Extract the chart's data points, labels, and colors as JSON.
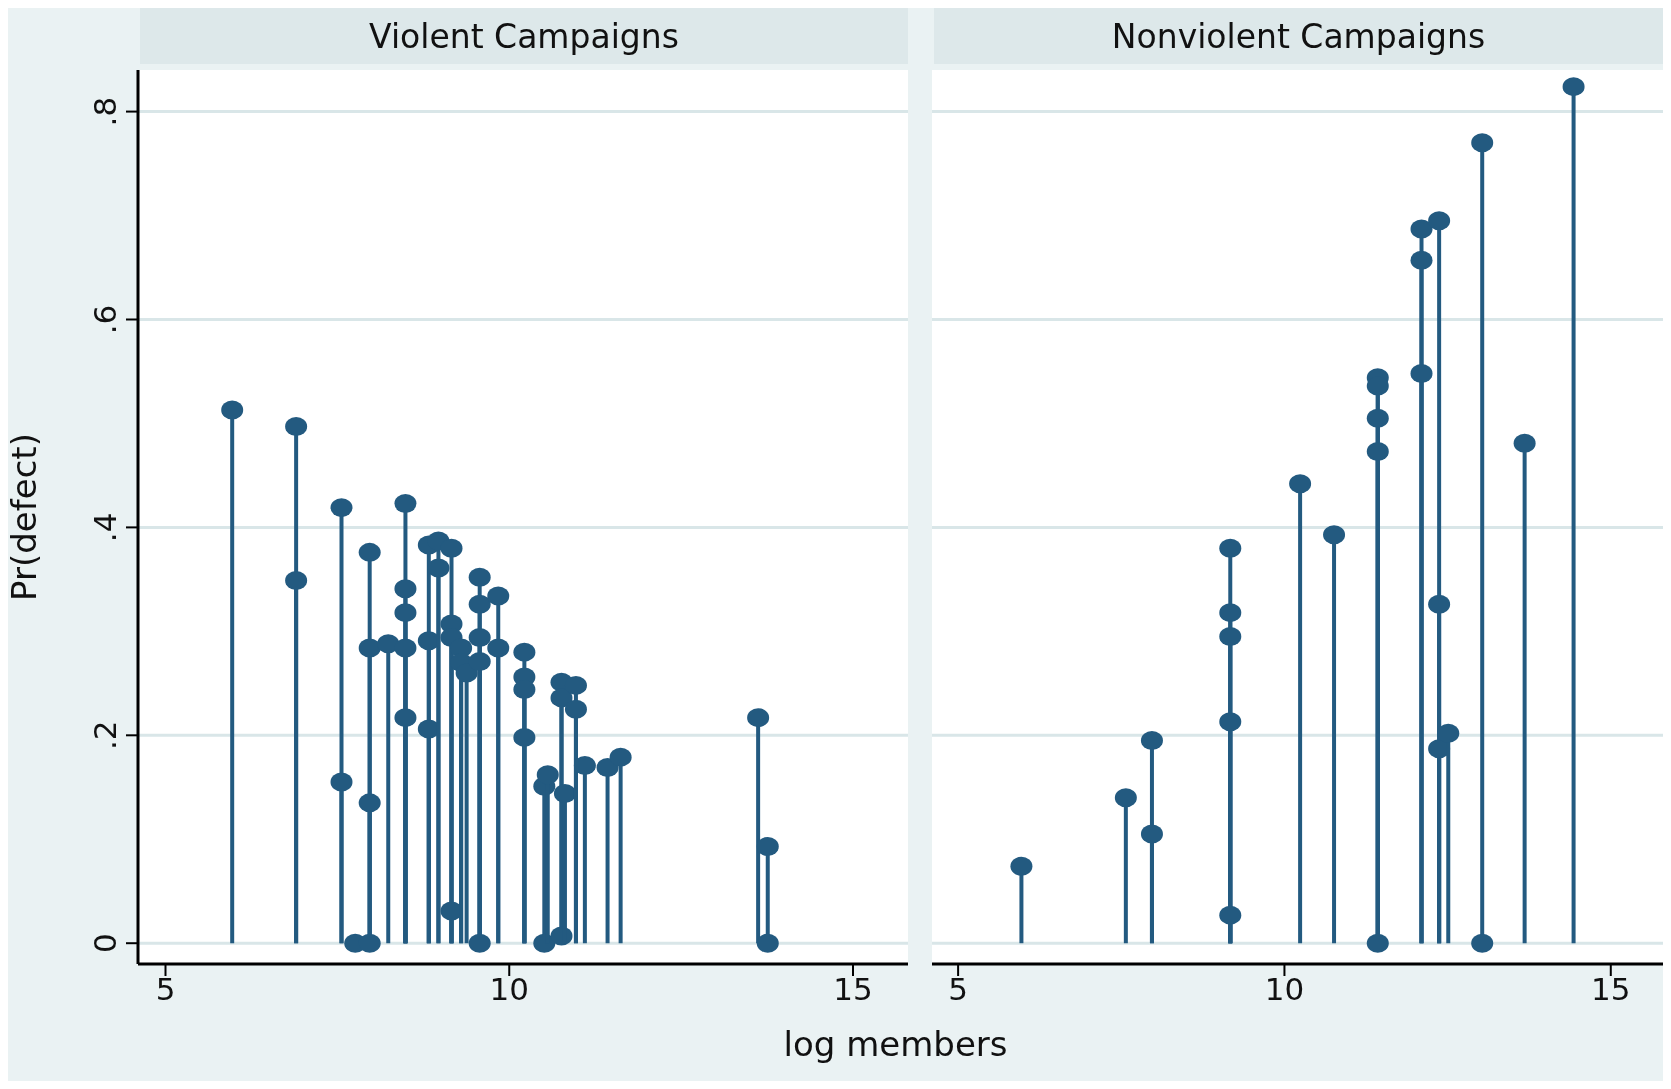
{
  "chart_data": [
    {
      "type": "lollipop",
      "title": "Violent Campaigns",
      "ylabel": "Pr(defect)",
      "color": "#235a80",
      "marker": "circle",
      "grid": "y",
      "x": [
        5.97,
        6.9,
        6.9,
        7.56,
        7.56,
        7.76,
        7.97,
        7.97,
        7.97,
        7.97,
        8.24,
        8.49,
        8.49,
        8.49,
        8.49,
        8.49,
        8.83,
        8.83,
        8.83,
        8.97,
        8.97,
        9.16,
        9.16,
        9.16,
        9.16,
        9.3,
        9.3,
        9.38,
        9.57,
        9.57,
        9.57,
        9.57,
        9.57,
        9.84,
        9.84,
        10.22,
        10.22,
        10.22,
        10.22,
        10.51,
        10.51,
        10.56,
        10.76,
        10.76,
        10.76,
        10.81,
        10.97,
        10.97,
        11.1,
        11.43,
        11.62,
        13.62,
        13.76,
        13.76
      ],
      "values": [
        0.513,
        0.497,
        0.349,
        0.419,
        0.155,
        0,
        0.376,
        0.284,
        0.135,
        0,
        0.288,
        0.423,
        0.341,
        0.318,
        0.284,
        0.217,
        0.383,
        0.291,
        0.206,
        0.387,
        0.361,
        0.38,
        0.307,
        0.294,
        0.031,
        0.284,
        0.27,
        0.26,
        0.352,
        0.326,
        0.294,
        0.271,
        0,
        0.334,
        0.284,
        0.28,
        0.256,
        0.244,
        0.198,
        0.151,
        0,
        0.162,
        0.251,
        0.236,
        0.007,
        0.144,
        0.248,
        0.225,
        0.171,
        0.169,
        0.179,
        0.217,
        0.093,
        0
      ],
      "xlim": [
        4.6,
        15.8
      ],
      "ylim": [
        -0.02,
        0.84
      ],
      "xticks": [
        5,
        10,
        15
      ],
      "yticks": [
        0,
        {
          "value": 0.2,
          "label": ".2"
        },
        {
          "value": 0.4,
          "label": ".4"
        },
        {
          "value": 0.6,
          "label": ".6"
        },
        {
          "value": 0.8,
          "label": ".8"
        }
      ]
    },
    {
      "type": "lollipop",
      "title": "Nonviolent Campaigns",
      "xlabel": "log members",
      "color": "#235a80",
      "marker": "circle",
      "grid": "y",
      "tick_labels": "x",
      "x": [
        5.97,
        7.57,
        7.97,
        7.97,
        9.17,
        9.17,
        9.17,
        9.17,
        9.17,
        10.24,
        10.76,
        11.43,
        11.43,
        11.43,
        11.43,
        11.43,
        12.1,
        12.1,
        12.1,
        12.37,
        12.37,
        12.37,
        12.51,
        13.03,
        13.03,
        13.68,
        14.43
      ],
      "values": [
        0.074,
        0.14,
        0.195,
        0.105,
        0.38,
        0.318,
        0.295,
        0.213,
        0.027,
        0.442,
        0.393,
        0.544,
        0.536,
        0.505,
        0.473,
        0,
        0.687,
        0.657,
        0.548,
        0.695,
        0.326,
        0.187,
        0.202,
        0.77,
        0,
        0.481,
        0.824
      ],
      "xlim": [
        4.6,
        15.8
      ],
      "ylim": [
        -0.02,
        0.84
      ],
      "xticks": [
        5,
        10,
        15
      ],
      "yticks": [
        0,
        0.2,
        0.4,
        0.6,
        0.8
      ]
    }
  ]
}
